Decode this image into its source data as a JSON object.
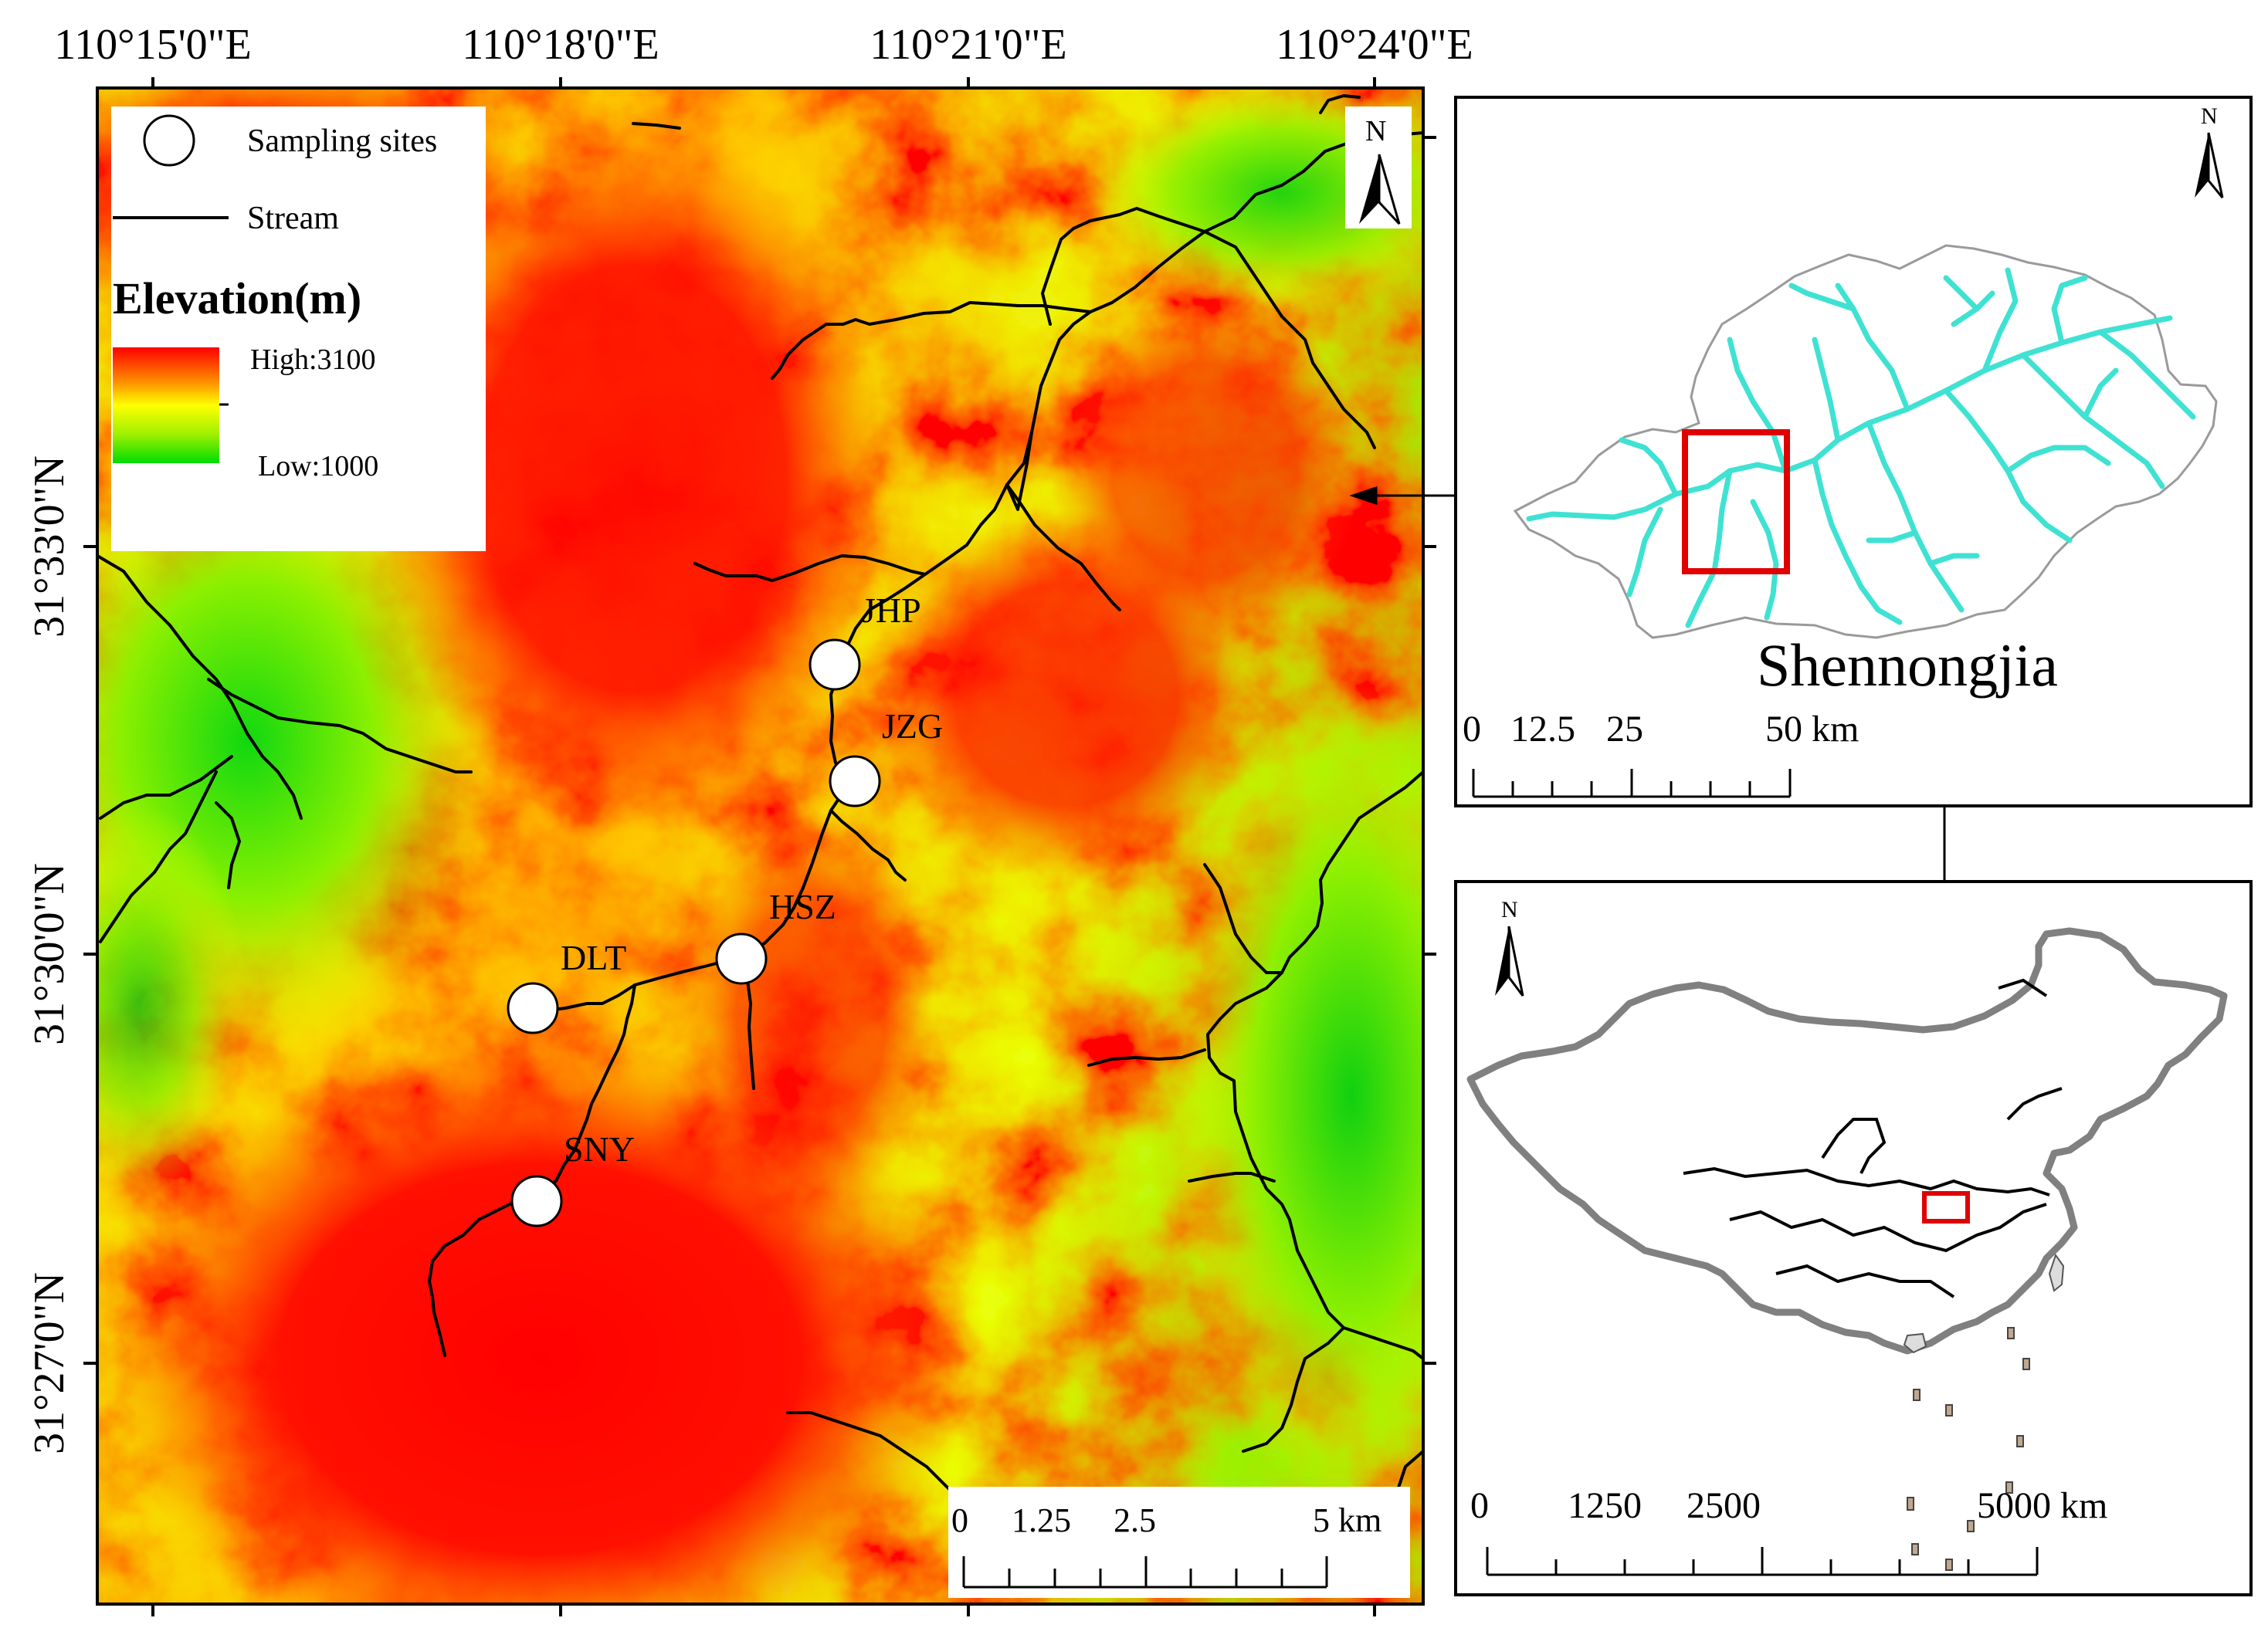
{
  "main_map": {
    "longitude_labels": [
      "110°15'0\"E",
      "110°18'0\"E",
      "110°21'0\"E",
      "110°24'0\"E"
    ],
    "latitude_labels": [
      "31°33'0\"N",
      "31°30'0\"N",
      "31°27'0\"N"
    ],
    "legend": {
      "sampling_sites_label": "Sampling sites",
      "stream_label": "Stream",
      "elevation_title": "Elevation(m)",
      "high_label": "High:3100",
      "low_label": "Low:1000"
    },
    "north_label": "N",
    "sites": [
      {
        "code": "JHP"
      },
      {
        "code": "JZG"
      },
      {
        "code": "HSZ"
      },
      {
        "code": "DLT"
      },
      {
        "code": "SNY"
      }
    ],
    "scale_bar": {
      "ticks": [
        "0",
        "1.25",
        "2.5"
      ],
      "end_label": "5 km"
    },
    "colors": {
      "stream": "#000000",
      "site_fill": "#ffffff",
      "high": "#ff0000",
      "mid": "#ffff00",
      "low": "#00dd00"
    }
  },
  "inset_shennongjia": {
    "north_label": "N",
    "title": "Shennongjia",
    "scale_bar": {
      "ticks": [
        "0",
        "12.5",
        "25"
      ],
      "end_label": "50 km"
    },
    "colors": {
      "river": "#3fe2d2",
      "highlight": "#e00000"
    }
  },
  "inset_china": {
    "north_label": "N",
    "scale_bar": {
      "ticks": [
        "0",
        "1250",
        "2500"
      ],
      "end_label": "5000 km"
    },
    "colors": {
      "outline": "#808080",
      "highlight": "#e00000"
    }
  }
}
